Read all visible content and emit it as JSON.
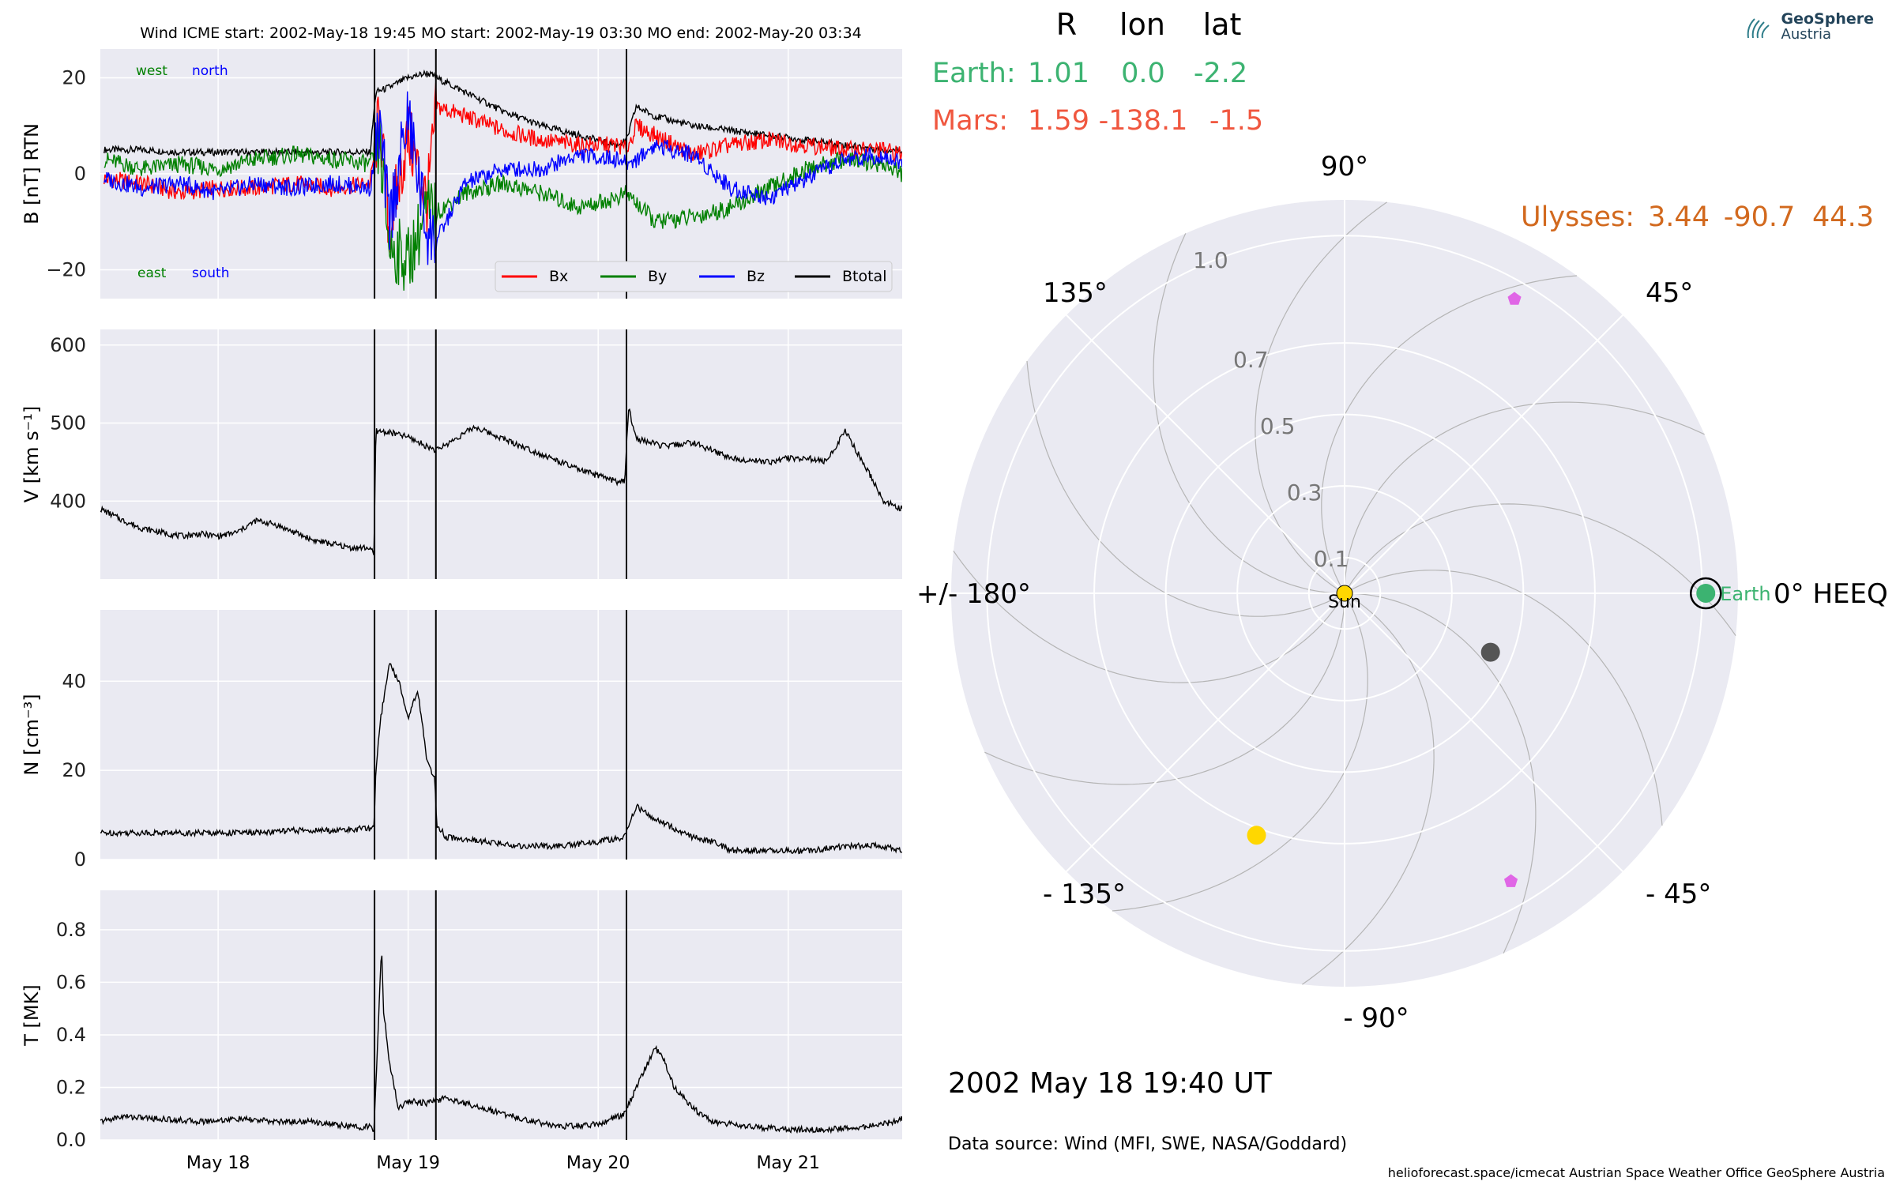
{
  "logo": {
    "name": "GeoSphere",
    "sub": "Austria"
  },
  "header": {
    "title": "Wind    ICME start: 2002-May-18 19:45   MO start: 2002-May-19 03:30   MO end: 2002-May-20 03:34"
  },
  "footer": {
    "date_text": "2002 May 18  19:40 UT",
    "source_text": "Data source: Wind (MFI, SWE, NASA/Goddard)",
    "credits_text": "helioforecast.space/icmecat   Austrian Space Weather Office   GeoSphere Austria"
  },
  "colors": {
    "panel_bg": "#eaeaf2",
    "grid": "#ffffff",
    "bx": "#ff0000",
    "by": "#008000",
    "bz": "#0000ff",
    "btotal": "#000000",
    "earth": "#3cb371",
    "mars": "#f0573f",
    "ulysses": "#d2691e",
    "spacecraft_marker": "#e066e6",
    "planet_gray": "#555555",
    "sun": "#ffd700"
  },
  "chart_data": [
    {
      "type": "line",
      "title": "Wind    ICME start: 2002-May-18 19:45   MO start: 2002-May-19 03:30   MO end: 2002-May-20 03:34",
      "ylabel": "B [nT] RTN",
      "ylim": [
        -26,
        26
      ],
      "yticks": [
        20,
        0,
        -20
      ],
      "ytick_labels": [
        "20",
        "0",
        "−20"
      ],
      "xlim_day": [
        17.38,
        21.6
      ],
      "xticks_day": [
        18,
        19,
        20,
        21
      ],
      "xtick_labels": [
        "May 18",
        "May 19",
        "May 20",
        "May 21"
      ],
      "event_lines_day": [
        18.823,
        19.146,
        20.149
      ],
      "corner_labels": {
        "top_left": "west",
        "top_right": "north",
        "bottom_left": "east",
        "bottom_right": "south"
      },
      "legend": [
        "Bx",
        "By",
        "Bz",
        "Btotal"
      ],
      "series": [
        {
          "name": "Btotal",
          "x_day": [
            17.4,
            17.6,
            17.8,
            18.0,
            18.2,
            18.4,
            18.6,
            18.8,
            18.83,
            18.9,
            19.0,
            19.1,
            19.15,
            19.3,
            19.5,
            19.7,
            19.9,
            20.1,
            20.15,
            20.2,
            20.3,
            20.5,
            20.7,
            20.9,
            21.1,
            21.3,
            21.5,
            21.6
          ],
          "values": [
            5,
            5,
            4.5,
            4.5,
            4.5,
            4.5,
            4.5,
            4.5,
            17,
            18,
            20,
            21,
            20,
            17,
            13,
            10,
            8,
            6,
            7,
            14,
            12,
            10,
            9,
            8,
            7,
            6,
            5,
            5
          ]
        },
        {
          "name": "Bx",
          "x_day": [
            17.4,
            17.6,
            17.8,
            18.0,
            18.2,
            18.4,
            18.6,
            18.8,
            18.85,
            18.9,
            19.0,
            19.1,
            19.15,
            19.3,
            19.5,
            19.7,
            19.9,
            20.1,
            20.15,
            20.2,
            20.3,
            20.5,
            20.7,
            20.9,
            21.1,
            21.3,
            21.5,
            21.6
          ],
          "values": [
            -1,
            -2,
            -4,
            -3,
            -3,
            -2,
            -3,
            -2,
            12,
            -12,
            8,
            -6,
            14,
            12,
            9,
            7,
            6,
            6,
            5,
            10,
            8,
            4,
            6,
            7,
            6,
            5,
            5,
            4
          ]
        },
        {
          "name": "By",
          "x_day": [
            17.4,
            17.6,
            17.8,
            18.0,
            18.2,
            18.4,
            18.6,
            18.8,
            18.85,
            18.9,
            19.0,
            19.1,
            19.15,
            19.3,
            19.5,
            19.7,
            19.9,
            20.1,
            20.15,
            20.2,
            20.3,
            20.5,
            20.7,
            20.9,
            21.1,
            21.3,
            21.5,
            21.6
          ],
          "values": [
            3,
            1,
            2,
            1,
            3,
            4,
            3,
            2,
            6,
            -15,
            -18,
            -8,
            -8,
            -4,
            -2,
            -4,
            -7,
            -5,
            -4,
            -6,
            -10,
            -9,
            -7,
            -3,
            1,
            3,
            2,
            0
          ]
        },
        {
          "name": "Bz",
          "x_day": [
            17.4,
            17.6,
            17.8,
            18.0,
            18.2,
            18.4,
            18.6,
            18.8,
            18.85,
            18.9,
            19.0,
            19.1,
            19.15,
            19.3,
            19.5,
            19.7,
            19.9,
            20.1,
            20.15,
            20.2,
            20.3,
            20.5,
            20.7,
            20.9,
            21.1,
            21.3,
            21.5,
            21.6
          ],
          "values": [
            -1,
            -3,
            -2,
            -4,
            -2,
            -3,
            -2,
            -3,
            10,
            -10,
            12,
            -12,
            -14,
            -2,
            1,
            1,
            4,
            3,
            2,
            3,
            6,
            4,
            -3,
            -5,
            -1,
            3,
            4,
            2
          ]
        }
      ]
    },
    {
      "type": "line",
      "ylabel": "V [km s⁻¹]",
      "ylim": [
        300,
        620
      ],
      "yticks": [
        600,
        500,
        400
      ],
      "xlim_day": [
        17.38,
        21.6
      ],
      "xticks_day": [
        18,
        19,
        20,
        21
      ],
      "event_lines_day": [
        18.823,
        19.146,
        20.149
      ],
      "series": [
        {
          "name": "V",
          "x_day": [
            17.38,
            17.5,
            17.6,
            17.7,
            17.8,
            17.9,
            18.0,
            18.1,
            18.2,
            18.3,
            18.4,
            18.5,
            18.6,
            18.7,
            18.8,
            18.82,
            18.83,
            18.9,
            19.0,
            19.1,
            19.15,
            19.25,
            19.35,
            19.5,
            19.7,
            19.9,
            20.1,
            20.14,
            20.16,
            20.2,
            20.35,
            20.5,
            20.7,
            20.9,
            21.0,
            21.1,
            21.2,
            21.3,
            21.45,
            21.5,
            21.6
          ],
          "values": [
            390,
            375,
            365,
            360,
            355,
            358,
            355,
            360,
            375,
            370,
            360,
            350,
            345,
            340,
            340,
            330,
            490,
            488,
            482,
            470,
            465,
            480,
            495,
            480,
            460,
            440,
            425,
            425,
            520,
            480,
            470,
            475,
            455,
            450,
            455,
            455,
            450,
            490,
            425,
            400,
            390
          ]
        }
      ]
    },
    {
      "type": "line",
      "ylabel": "N [cm⁻³]",
      "ylim": [
        0,
        56
      ],
      "yticks": [
        40,
        20,
        0
      ],
      "xlim_day": [
        17.38,
        21.6
      ],
      "xticks_day": [
        18,
        19,
        20,
        21
      ],
      "event_lines_day": [
        18.823,
        19.146,
        20.149
      ],
      "series": [
        {
          "name": "N",
          "x_day": [
            17.38,
            17.6,
            17.8,
            18.0,
            18.2,
            18.4,
            18.6,
            18.8,
            18.82,
            18.83,
            18.85,
            18.9,
            18.95,
            19.0,
            19.05,
            19.1,
            19.14,
            19.15,
            19.2,
            19.4,
            19.6,
            19.8,
            20.0,
            20.14,
            20.2,
            20.3,
            20.4,
            20.5,
            20.6,
            20.7,
            20.9,
            21.1,
            21.3,
            21.5,
            21.6
          ],
          "values": [
            6,
            6,
            6,
            6,
            6,
            6.5,
            6.5,
            7,
            7,
            20,
            30,
            44,
            40,
            32,
            38,
            22,
            18,
            8,
            5,
            4,
            3,
            3,
            4,
            5,
            12,
            9,
            7,
            5,
            4,
            2,
            2,
            2,
            3,
            3,
            2
          ]
        }
      ]
    },
    {
      "type": "line",
      "ylabel": "T [MK]",
      "ylim": [
        0,
        0.95
      ],
      "yticks": [
        0.8,
        0.6,
        0.4,
        0.2,
        0.0
      ],
      "ytick_labels": [
        "0.8",
        "0.6",
        "0.4",
        "0.2",
        "0.0"
      ],
      "xlim_day": [
        17.38,
        21.6
      ],
      "xticks_day": [
        18,
        19,
        20,
        21
      ],
      "xtick_labels": [
        "May 18",
        "May 19",
        "May 20",
        "May 21"
      ],
      "event_lines_day": [
        18.823,
        19.146,
        20.149
      ],
      "series": [
        {
          "name": "T",
          "x_day": [
            17.38,
            17.5,
            17.7,
            17.9,
            18.1,
            18.3,
            18.5,
            18.7,
            18.8,
            18.82,
            18.83,
            18.86,
            18.87,
            18.9,
            18.95,
            19.0,
            19.1,
            19.2,
            19.4,
            19.6,
            19.8,
            20.0,
            20.14,
            20.2,
            20.3,
            20.35,
            20.4,
            20.5,
            20.6,
            20.8,
            21.0,
            21.2,
            21.4,
            21.5,
            21.6
          ],
          "values": [
            0.07,
            0.09,
            0.08,
            0.07,
            0.08,
            0.07,
            0.07,
            0.05,
            0.05,
            0.04,
            0.2,
            0.74,
            0.5,
            0.3,
            0.12,
            0.15,
            0.14,
            0.16,
            0.12,
            0.08,
            0.05,
            0.06,
            0.1,
            0.2,
            0.35,
            0.3,
            0.2,
            0.12,
            0.07,
            0.05,
            0.04,
            0.04,
            0.05,
            0.06,
            0.08
          ]
        }
      ]
    },
    {
      "type": "scatter",
      "subtype": "polar",
      "columns": [
        "R",
        "lon",
        "lat"
      ],
      "rows": [
        {
          "name": "Earth:",
          "R": "1.01",
          "lon": "0.0",
          "lat": "-2.2"
        },
        {
          "name": "Mars:",
          "R": "1.59",
          "lon": "-138.1",
          "lat": "-1.5"
        },
        {
          "name": "Ulysses:",
          "R": "3.44",
          "lon": "-90.7",
          "lat": "44.3"
        }
      ],
      "r_ticks": [
        "0.1",
        "0.3",
        "0.5",
        "0.7",
        "1.0"
      ],
      "angle_labels": {
        "deg0": "0° HEEQ",
        "deg45": "45°",
        "deg90": "90°",
        "deg135": "135°",
        "deg180": "+/- 180°",
        "degm135": "- 135°",
        "degm90": "- 90°",
        "degm45": "- 45°"
      },
      "sun_label": "Sun",
      "earth_label": "Earth",
      "points": [
        {
          "name": "Earth",
          "r": 1.01,
          "lon": 0.0
        },
        {
          "name": "planet-gray",
          "r": 0.44,
          "lon": -22
        },
        {
          "name": "planet-yellow",
          "r": 0.72,
          "lon": -110
        },
        {
          "name": "spacecraft-1",
          "r": 0.95,
          "lon": 60
        },
        {
          "name": "spacecraft-2",
          "r": 0.93,
          "lon": -60
        }
      ]
    }
  ]
}
